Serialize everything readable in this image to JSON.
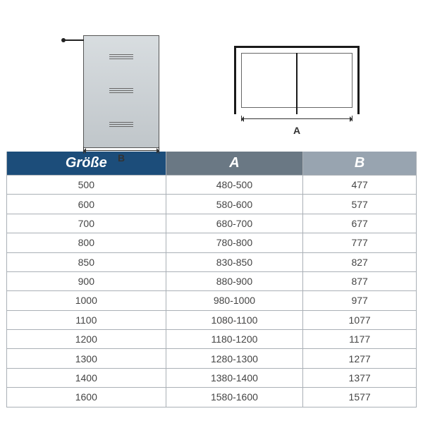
{
  "diagram": {
    "left_label": "B",
    "right_label": "A"
  },
  "table": {
    "header_bg_g": "#1c4d7a",
    "header_bg_a": "#6a7884",
    "header_bg_b": "#98a4b0",
    "columns": [
      "Größe",
      "A",
      "B"
    ],
    "rows": [
      [
        "500",
        "480-500",
        "477"
      ],
      [
        "600",
        "580-600",
        "577"
      ],
      [
        "700",
        "680-700",
        "677"
      ],
      [
        "800",
        "780-800",
        "777"
      ],
      [
        "850",
        "830-850",
        "827"
      ],
      [
        "900",
        "880-900",
        "877"
      ],
      [
        "1000",
        "980-1000",
        "977"
      ],
      [
        "1100",
        "1080-1100",
        "1077"
      ],
      [
        "1200",
        "1180-1200",
        "1177"
      ],
      [
        "1300",
        "1280-1300",
        "1277"
      ],
      [
        "1400",
        "1380-1400",
        "1377"
      ],
      [
        "1600",
        "1580-1600",
        "1577"
      ]
    ]
  },
  "styles": {
    "border_color": "#aab0b6",
    "cell_font_size": 14,
    "header_font_size": 20
  }
}
